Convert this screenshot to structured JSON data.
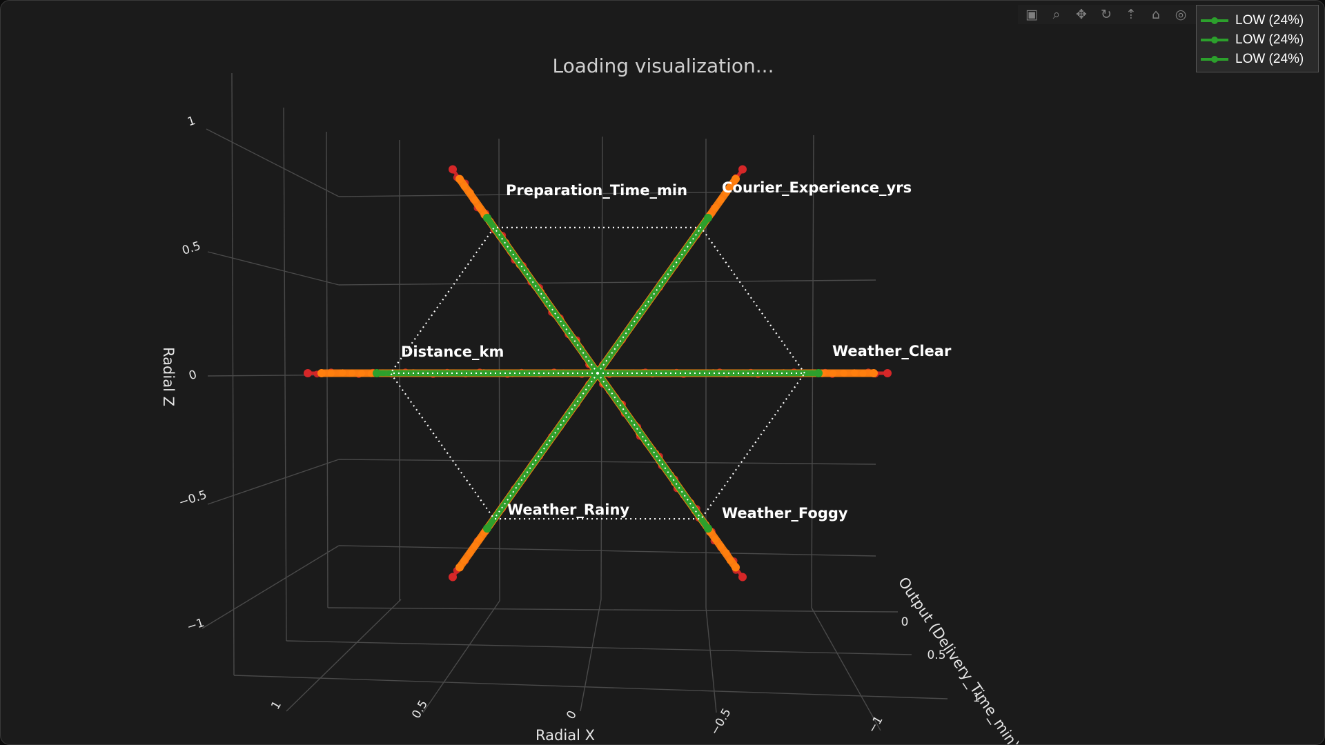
{
  "title": "Loading visualization...",
  "modebar": {
    "buttons": [
      {
        "name": "camera-icon",
        "glyph": "▣"
      },
      {
        "name": "zoom-icon",
        "glyph": "⌕"
      },
      {
        "name": "pan-icon",
        "glyph": "✥"
      },
      {
        "name": "orbit-rotation-icon",
        "glyph": "↻"
      },
      {
        "name": "turntable-rotation-icon",
        "glyph": "⇡"
      },
      {
        "name": "reset-camera-icon",
        "glyph": "⌂"
      },
      {
        "name": "hover-closest-icon",
        "glyph": "◎"
      },
      {
        "name": "toggle-spike-lines-icon",
        "glyph": "▭"
      }
    ]
  },
  "legend": {
    "entries": [
      "LOW (24%)",
      "LOW (24%)",
      "LOW (24%)"
    ],
    "color": "#2ca02c"
  },
  "colors": {
    "background": "#1b1b1b",
    "grid": "#4a4a4a",
    "green": "#2ca02c",
    "orange": "#ff7f0e",
    "red": "#d62728"
  },
  "chart_data": {
    "type": "scatter3d",
    "title": "Loading visualization...",
    "xlabel": "Radial X",
    "ylabel": "Output (Delivery_Time_min)",
    "zlabel": "Radial Z",
    "x_ticks": [
      "1",
      "0.5",
      "0",
      "−0.5",
      "−1"
    ],
    "y_ticks": [
      "0",
      "0.5",
      "1"
    ],
    "z_ticks": [
      "1",
      "0.5",
      "0",
      "−0.5",
      "−1"
    ],
    "xlim": [
      -1,
      1
    ],
    "ylim": [
      0,
      1
    ],
    "zlim": [
      -1,
      1
    ],
    "spokes": [
      {
        "label": "Weather_Clear",
        "angle_deg": 0
      },
      {
        "label": "Courier_Experience_yrs",
        "angle_deg": 60
      },
      {
        "label": "Preparation_Time_min",
        "angle_deg": 120
      },
      {
        "label": "Distance_km",
        "angle_deg": 180
      },
      {
        "label": "Weather_Rainy",
        "angle_deg": 240
      },
      {
        "label": "Weather_Foggy",
        "angle_deg": 300
      }
    ],
    "series": [
      {
        "name": "LOW (24%)",
        "color": "#2ca02c",
        "radius_min": 0.2,
        "radius_max": 0.8
      },
      {
        "name": "LOW (24%)",
        "color": "#ff7f0e",
        "radius_min": 0.05,
        "radius_max": 1.0
      },
      {
        "name": "LOW (24%)",
        "color": "#d62728",
        "radius_min": 0.05,
        "radius_max": 1.05
      }
    ],
    "reference_hexagon_radius": 0.75,
    "grid": true,
    "legend_position": "top-right"
  }
}
